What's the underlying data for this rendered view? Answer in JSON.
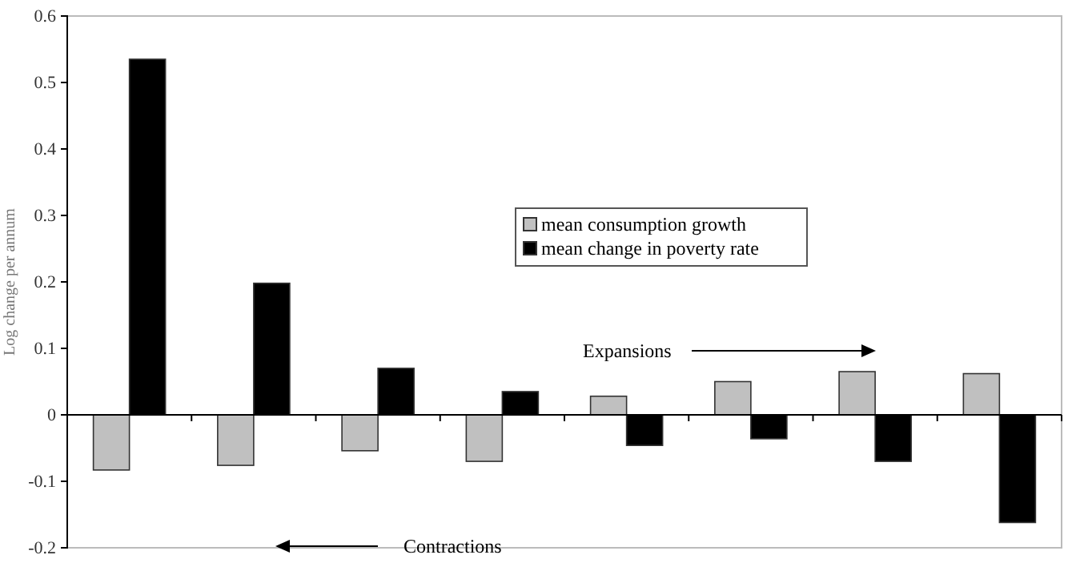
{
  "chart_data": {
    "type": "bar",
    "ylabel": "Log change per annum",
    "categories": [
      null,
      null,
      null,
      null,
      null,
      null,
      null,
      null
    ],
    "series": [
      {
        "name": "mean consumption growth",
        "color": "#c0c0c0",
        "values": [
          -0.083,
          -0.076,
          -0.054,
          -0.07,
          0.028,
          0.05,
          0.065,
          0.062
        ]
      },
      {
        "name": "mean change in poverty rate",
        "color": "#000000",
        "values": [
          0.535,
          0.198,
          0.07,
          0.035,
          -0.046,
          -0.036,
          -0.07,
          -0.162
        ]
      }
    ],
    "ylim": [
      -0.2,
      0.6
    ],
    "yticks": [
      -0.2,
      -0.1,
      0,
      0.1,
      0.2,
      0.3,
      0.4,
      0.5,
      0.6
    ],
    "legend": "top",
    "annotations": [
      "Expansions",
      "Contractions"
    ]
  }
}
